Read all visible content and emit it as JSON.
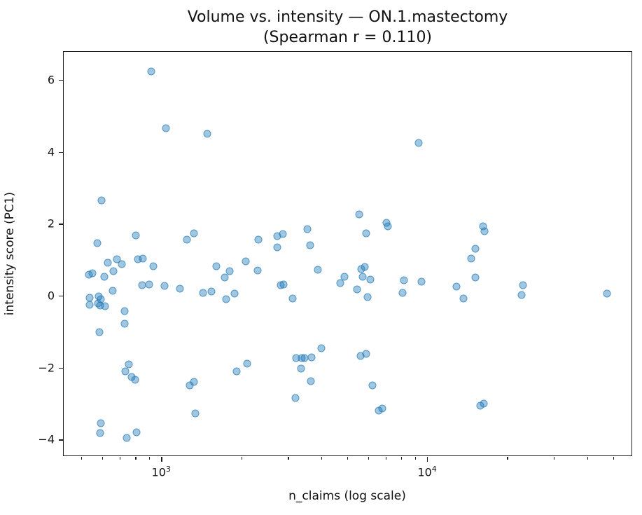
{
  "chart_data": {
    "type": "scatter",
    "title_line1": "Volume vs. intensity — ON.1.mastectomy",
    "title_line2": "(Spearman r = 0.110)",
    "spearman_r": 0.11,
    "xlabel": "n_claims (log scale)",
    "ylabel": "intensity score (PC1)",
    "x_scale": "log",
    "grid": false,
    "legend": "none",
    "xlim": [
      430,
      59400
    ],
    "ylim": [
      -4.48,
      6.78
    ],
    "marker_color": "#1f77b4",
    "marker_alpha": 0.5,
    "x_major_ticks": [
      {
        "value": 1000,
        "base": "10",
        "exp": "3"
      },
      {
        "value": 10000,
        "base": "10",
        "exp": "4"
      }
    ],
    "x_minor_ticks": [
      500,
      600,
      700,
      800,
      900,
      2000,
      3000,
      4000,
      5000,
      6000,
      7000,
      8000,
      9000,
      20000,
      30000,
      40000,
      50000
    ],
    "y_ticks": [
      {
        "value": 6,
        "label": "6"
      },
      {
        "value": 4,
        "label": "4"
      },
      {
        "value": 2,
        "label": "2"
      },
      {
        "value": 0,
        "label": "0"
      },
      {
        "value": -2,
        "label": "−2"
      },
      {
        "value": -4,
        "label": "−4"
      }
    ],
    "points": [
      [
        919,
        6.24
      ],
      [
        1043,
        4.66
      ],
      [
        1492,
        4.5
      ],
      [
        9290,
        4.25
      ],
      [
        597,
        2.65
      ],
      [
        5540,
        2.26
      ],
      [
        7040,
        2.03
      ],
      [
        7130,
        1.93
      ],
      [
        3540,
        1.85
      ],
      [
        16250,
        1.93
      ],
      [
        16450,
        1.79
      ],
      [
        576,
        1.46
      ],
      [
        804,
        1.68
      ],
      [
        1251,
        1.56
      ],
      [
        1330,
        1.73
      ],
      [
        2323,
        1.56
      ],
      [
        2735,
        1.66
      ],
      [
        2872,
        1.72
      ],
      [
        5900,
        1.74
      ],
      [
        2735,
        1.35
      ],
      [
        3630,
        1.4
      ],
      [
        15200,
        1.31
      ],
      [
        631,
        0.92
      ],
      [
        682,
        1.01
      ],
      [
        712,
        0.88
      ],
      [
        818,
        1.01
      ],
      [
        855,
        1.03
      ],
      [
        936,
        0.82
      ],
      [
        534,
        0.58
      ],
      [
        552,
        0.62
      ],
      [
        612,
        0.53
      ],
      [
        661,
        0.68
      ],
      [
        1614,
        0.82
      ],
      [
        1734,
        0.51
      ],
      [
        1811,
        0.68
      ],
      [
        2080,
        0.96
      ],
      [
        2311,
        0.7
      ],
      [
        3880,
        0.72
      ],
      [
        4715,
        0.35
      ],
      [
        4890,
        0.53
      ],
      [
        5660,
        0.74
      ],
      [
        5830,
        0.8
      ],
      [
        5730,
        0.53
      ],
      [
        6120,
        0.45
      ],
      [
        5460,
        0.18
      ],
      [
        5970,
        -0.04
      ],
      [
        8190,
        0.43
      ],
      [
        9530,
        0.39
      ],
      [
        8090,
        0.08
      ],
      [
        14650,
        1.03
      ],
      [
        15200,
        0.51
      ],
      [
        12910,
        0.25
      ],
      [
        13710,
        -0.08
      ],
      [
        22970,
        0.29
      ],
      [
        22700,
        0.02
      ],
      [
        47400,
        0.06
      ],
      [
        658,
        0.14
      ],
      [
        849,
        0.29
      ],
      [
        901,
        0.31
      ],
      [
        1031,
        0.27
      ],
      [
        1178,
        0.19
      ],
      [
        537,
        -0.06
      ],
      [
        581,
        -0.02
      ],
      [
        594,
        -0.1
      ],
      [
        537,
        -0.25
      ],
      [
        578,
        -0.21
      ],
      [
        588,
        -0.27
      ],
      [
        614,
        -0.29
      ],
      [
        1438,
        0.08
      ],
      [
        1547,
        0.12
      ],
      [
        1758,
        -0.1
      ],
      [
        1888,
        0.06
      ],
      [
        2820,
        0.29
      ],
      [
        2890,
        0.31
      ],
      [
        3126,
        -0.08
      ],
      [
        728,
        -0.43
      ],
      [
        728,
        -0.78
      ],
      [
        585,
        -1.01
      ],
      [
        4010,
        -1.46
      ],
      [
        3220,
        -1.74
      ],
      [
        3380,
        -1.74
      ],
      [
        3470,
        -1.74
      ],
      [
        3680,
        -1.72
      ],
      [
        5620,
        -1.68
      ],
      [
        5900,
        -1.62
      ],
      [
        3360,
        -2.03
      ],
      [
        757,
        -1.91
      ],
      [
        732,
        -2.11
      ],
      [
        772,
        -2.26
      ],
      [
        800,
        -2.34
      ],
      [
        1925,
        -2.11
      ],
      [
        2110,
        -1.89
      ],
      [
        3660,
        -2.38
      ],
      [
        1330,
        -2.4
      ],
      [
        1282,
        -2.5
      ],
      [
        6240,
        -2.5
      ],
      [
        3200,
        -2.85
      ],
      [
        1347,
        -3.28
      ],
      [
        6580,
        -3.2
      ],
      [
        6790,
        -3.14
      ],
      [
        15850,
        -3.06
      ],
      [
        16330,
        -3.0
      ],
      [
        594,
        -3.55
      ],
      [
        588,
        -3.82
      ],
      [
        744,
        -3.96
      ],
      [
        809,
        -3.8
      ]
    ]
  }
}
